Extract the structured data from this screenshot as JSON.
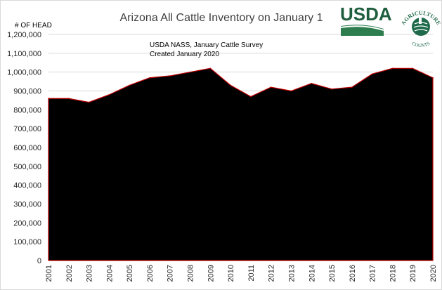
{
  "chart_data": {
    "type": "area",
    "title": "Arizona All Cattle  Inventory on January 1",
    "ylabel": "# OF HEAD",
    "xlabel": "",
    "annotation": [
      "USDA NASS, January Cattle Survey",
      "Created January 2020"
    ],
    "categories": [
      "2001",
      "2002",
      "2003",
      "2004",
      "2005",
      "2006",
      "2007",
      "2008",
      "2009",
      "2010",
      "2011",
      "2012",
      "2013",
      "2014",
      "2015",
      "2016",
      "2017",
      "2018",
      "2019",
      "2020"
    ],
    "series": [
      {
        "name": "All Cattle",
        "values": [
          860000,
          860000,
          840000,
          880000,
          930000,
          970000,
          980000,
          1000000,
          1020000,
          930000,
          870000,
          920000,
          900000,
          940000,
          910000,
          920000,
          990000,
          1020000,
          1020000,
          970000
        ],
        "fill": "#000000",
        "stroke": "#c00000"
      }
    ],
    "ylim": [
      0,
      1200000
    ],
    "yticks": [
      0,
      100000,
      200000,
      300000,
      400000,
      500000,
      600000,
      700000,
      800000,
      900000,
      1000000,
      1100000,
      1200000
    ],
    "ytick_labels": [
      "0",
      "100,000",
      "200,000",
      "300,000",
      "400,000",
      "500,000",
      "600,000",
      "700,000",
      "800,000",
      "900,000",
      "1,000,000",
      "1,100,000",
      "1,200,000"
    ],
    "grid": true
  },
  "logos": {
    "usda": {
      "text": "USDA",
      "color": "#1f5f3f",
      "accent": "#2e7d4f"
    },
    "ag_counts": {
      "ring_text": "AGRICULTURE",
      "bottom_text": "COUNTS",
      "color": "#1f6a4a"
    }
  }
}
